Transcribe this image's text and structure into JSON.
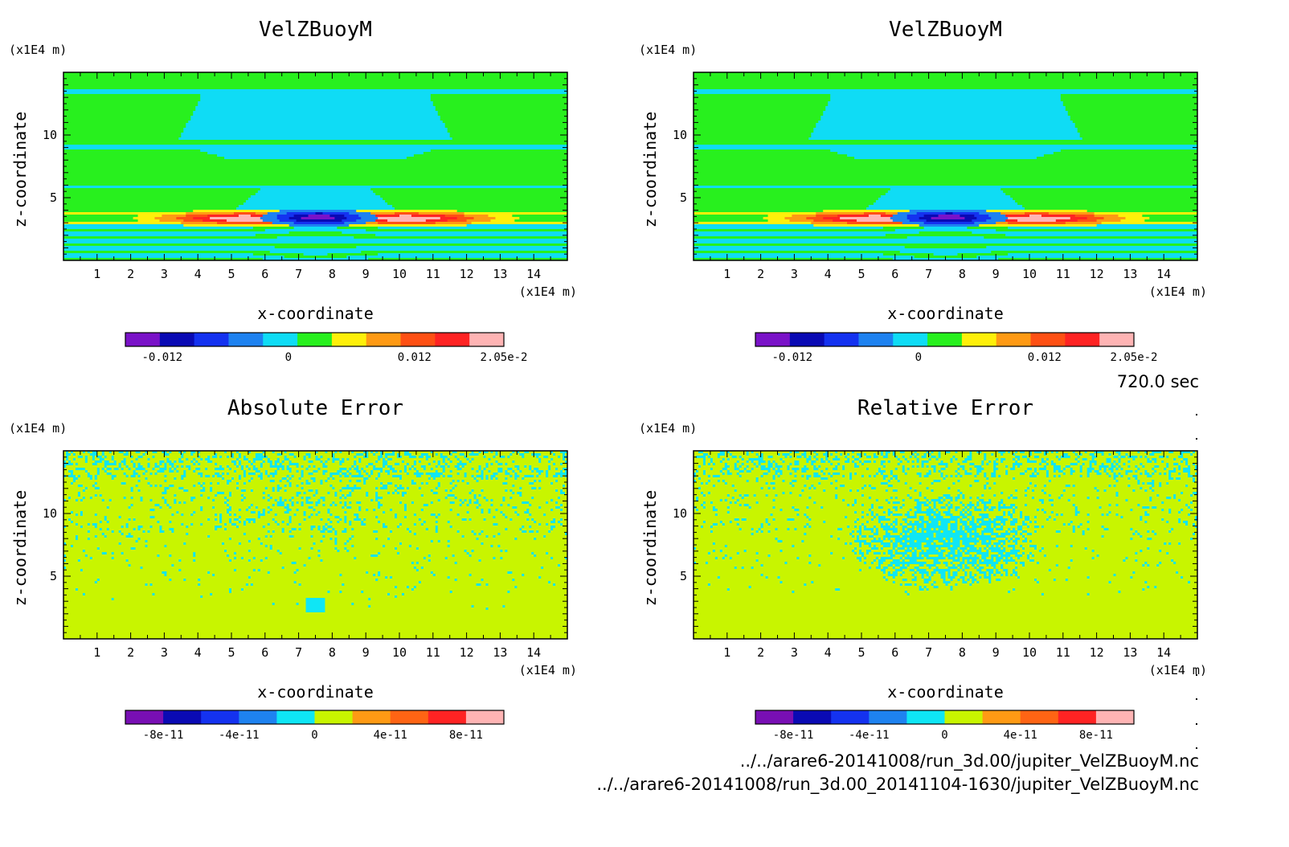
{
  "time_label": "720.0 sec",
  "files": [
    "../../arare6-20141008/run_3d.00/jupiter_VelZBuoyM.nc",
    "../../arare6-20141008/run_3d.00_20141104-1630/jupiter_VelZBuoyM.nc"
  ],
  "chart_data": [
    {
      "type": "heatmap",
      "title": "VelZBuoyM",
      "xlabel": "x-coordinate",
      "ylabel": "z-coordinate",
      "x_unit": "(x1E4 m)",
      "y_unit": "(x1E4 m)",
      "xlim": [
        0,
        15
      ],
      "ylim": [
        0,
        15
      ],
      "x_ticks": [
        "1",
        "2",
        "3",
        "4",
        "5",
        "6",
        "7",
        "8",
        "9",
        "10",
        "11",
        "12",
        "13",
        "14"
      ],
      "y_ticks": [
        "5",
        "10"
      ],
      "field": "buoyancy",
      "colorbar": {
        "min": -0.0155,
        "max": 0.0205,
        "colors": [
          "#7a12c8",
          "#0a0ab4",
          "#1432f0",
          "#1e82f0",
          "#0fdcf5",
          "#28f01e",
          "#fff00a",
          "#ff9a14",
          "#ff5014",
          "#ff2323",
          "#ffb4b4"
        ],
        "tick_labels": [
          "-0.012",
          "0",
          "0.012",
          "2.05e-2"
        ],
        "tick_values": [
          -0.012,
          0,
          0.012,
          0.0205
        ]
      }
    },
    {
      "type": "heatmap",
      "title": "VelZBuoyM",
      "xlabel": "x-coordinate",
      "ylabel": "z-coordinate",
      "x_unit": "(x1E4 m)",
      "y_unit": "(x1E4 m)",
      "xlim": [
        0,
        15
      ],
      "ylim": [
        0,
        15
      ],
      "x_ticks": [
        "1",
        "2",
        "3",
        "4",
        "5",
        "6",
        "7",
        "8",
        "9",
        "10",
        "11",
        "12",
        "13",
        "14"
      ],
      "y_ticks": [
        "5",
        "10"
      ],
      "field": "buoyancy",
      "colorbar": {
        "min": -0.0155,
        "max": 0.0205,
        "colors": [
          "#7a12c8",
          "#0a0ab4",
          "#1432f0",
          "#1e82f0",
          "#0fdcf5",
          "#28f01e",
          "#fff00a",
          "#ff9a14",
          "#ff5014",
          "#ff2323",
          "#ffb4b4"
        ],
        "tick_labels": [
          "-0.012",
          "0",
          "0.012",
          "2.05e-2"
        ],
        "tick_values": [
          -0.012,
          0,
          0.012,
          0.0205
        ]
      }
    },
    {
      "type": "heatmap",
      "title": "Absolute Error",
      "xlabel": "x-coordinate",
      "ylabel": "z-coordinate",
      "x_unit": "(x1E4 m)",
      "y_unit": "(x1E4 m)",
      "xlim": [
        0,
        15
      ],
      "ylim": [
        0,
        15
      ],
      "x_ticks": [
        "1",
        "2",
        "3",
        "4",
        "5",
        "6",
        "7",
        "8",
        "9",
        "10",
        "11",
        "12",
        "13",
        "14"
      ],
      "y_ticks": [
        "5",
        "10"
      ],
      "field": "abs_error",
      "colorbar": {
        "min": -1e-10,
        "max": 1e-10,
        "colors": [
          "#780fb4",
          "#0a0ab4",
          "#1432f0",
          "#1e82f0",
          "#0fe6f5",
          "#c8f500",
          "#ff9a14",
          "#ff6414",
          "#ff2323",
          "#ffb4b4"
        ],
        "tick_labels": [
          "-8e-11",
          "-4e-11",
          "0",
          "4e-11",
          "8e-11"
        ],
        "tick_values": [
          -8e-11,
          -4e-11,
          0,
          4e-11,
          8e-11
        ]
      }
    },
    {
      "type": "heatmap",
      "title": "Relative Error",
      "xlabel": "x-coordinate",
      "ylabel": "z-coordinate",
      "x_unit": "(x1E4 m)",
      "y_unit": "(x1E4 m)",
      "xlim": [
        0,
        15
      ],
      "ylim": [
        0,
        15
      ],
      "x_ticks": [
        "1",
        "2",
        "3",
        "4",
        "5",
        "6",
        "7",
        "8",
        "9",
        "10",
        "11",
        "12",
        "13",
        "14"
      ],
      "y_ticks": [
        "5",
        "10"
      ],
      "field": "rel_error",
      "colorbar": {
        "min": -1e-10,
        "max": 1e-10,
        "colors": [
          "#780fb4",
          "#0a0ab4",
          "#1432f0",
          "#1e82f0",
          "#0fe6f5",
          "#c8f500",
          "#ff9a14",
          "#ff6414",
          "#ff2323",
          "#ffb4b4"
        ],
        "tick_labels": [
          "-8e-11",
          "-4e-11",
          "0",
          "4e-11",
          "8e-11"
        ],
        "tick_values": [
          -8e-11,
          -4e-11,
          0,
          4e-11,
          8e-11
        ]
      }
    }
  ]
}
